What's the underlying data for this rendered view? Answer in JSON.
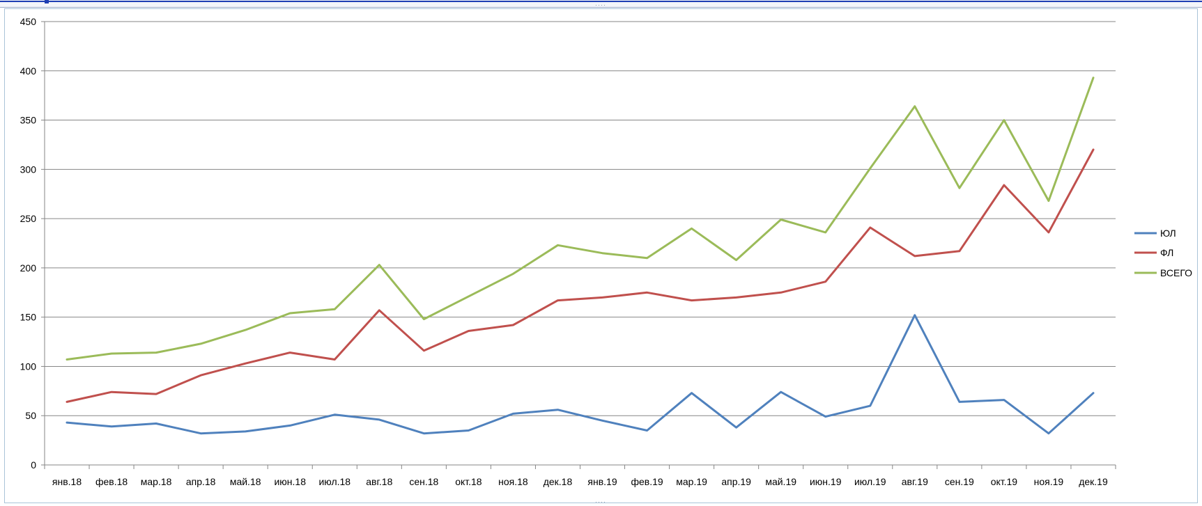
{
  "chart_data": {
    "type": "line",
    "title": "",
    "xlabel": "",
    "ylabel": "",
    "ylim": [
      0,
      450
    ],
    "yticks": [
      0,
      50,
      100,
      150,
      200,
      250,
      300,
      350,
      400,
      450
    ],
    "grid": true,
    "legend_position": "right",
    "categories": [
      "янв.18",
      "фев.18",
      "мар.18",
      "апр.18",
      "май.18",
      "июн.18",
      "июл.18",
      "авг.18",
      "сен.18",
      "окт.18",
      "ноя.18",
      "дек.18",
      "янв.19",
      "фев.19",
      "мар.19",
      "апр.19",
      "май.19",
      "июн.19",
      "июл.19",
      "авг.19",
      "сен.19",
      "окт.19",
      "ноя.19",
      "дек.19"
    ],
    "series": [
      {
        "name": "ЮЛ",
        "color": "#4f81bd",
        "values": [
          43,
          39,
          42,
          32,
          34,
          40,
          51,
          46,
          32,
          35,
          52,
          56,
          45,
          35,
          73,
          38,
          74,
          49,
          60,
          152,
          64,
          66,
          32,
          73
        ]
      },
      {
        "name": "ФЛ",
        "color": "#c0504d",
        "values": [
          64,
          74,
          72,
          91,
          103,
          114,
          107,
          157,
          116,
          136,
          142,
          167,
          170,
          175,
          167,
          170,
          175,
          186,
          241,
          212,
          217,
          284,
          236,
          320
        ]
      },
      {
        "name": "ВСЕГО",
        "color": "#9bbb59",
        "values": [
          107,
          113,
          114,
          123,
          137,
          154,
          158,
          203,
          148,
          171,
          194,
          223,
          215,
          210,
          240,
          208,
          249,
          236,
          301,
          364,
          281,
          350,
          268,
          393
        ]
      }
    ]
  }
}
